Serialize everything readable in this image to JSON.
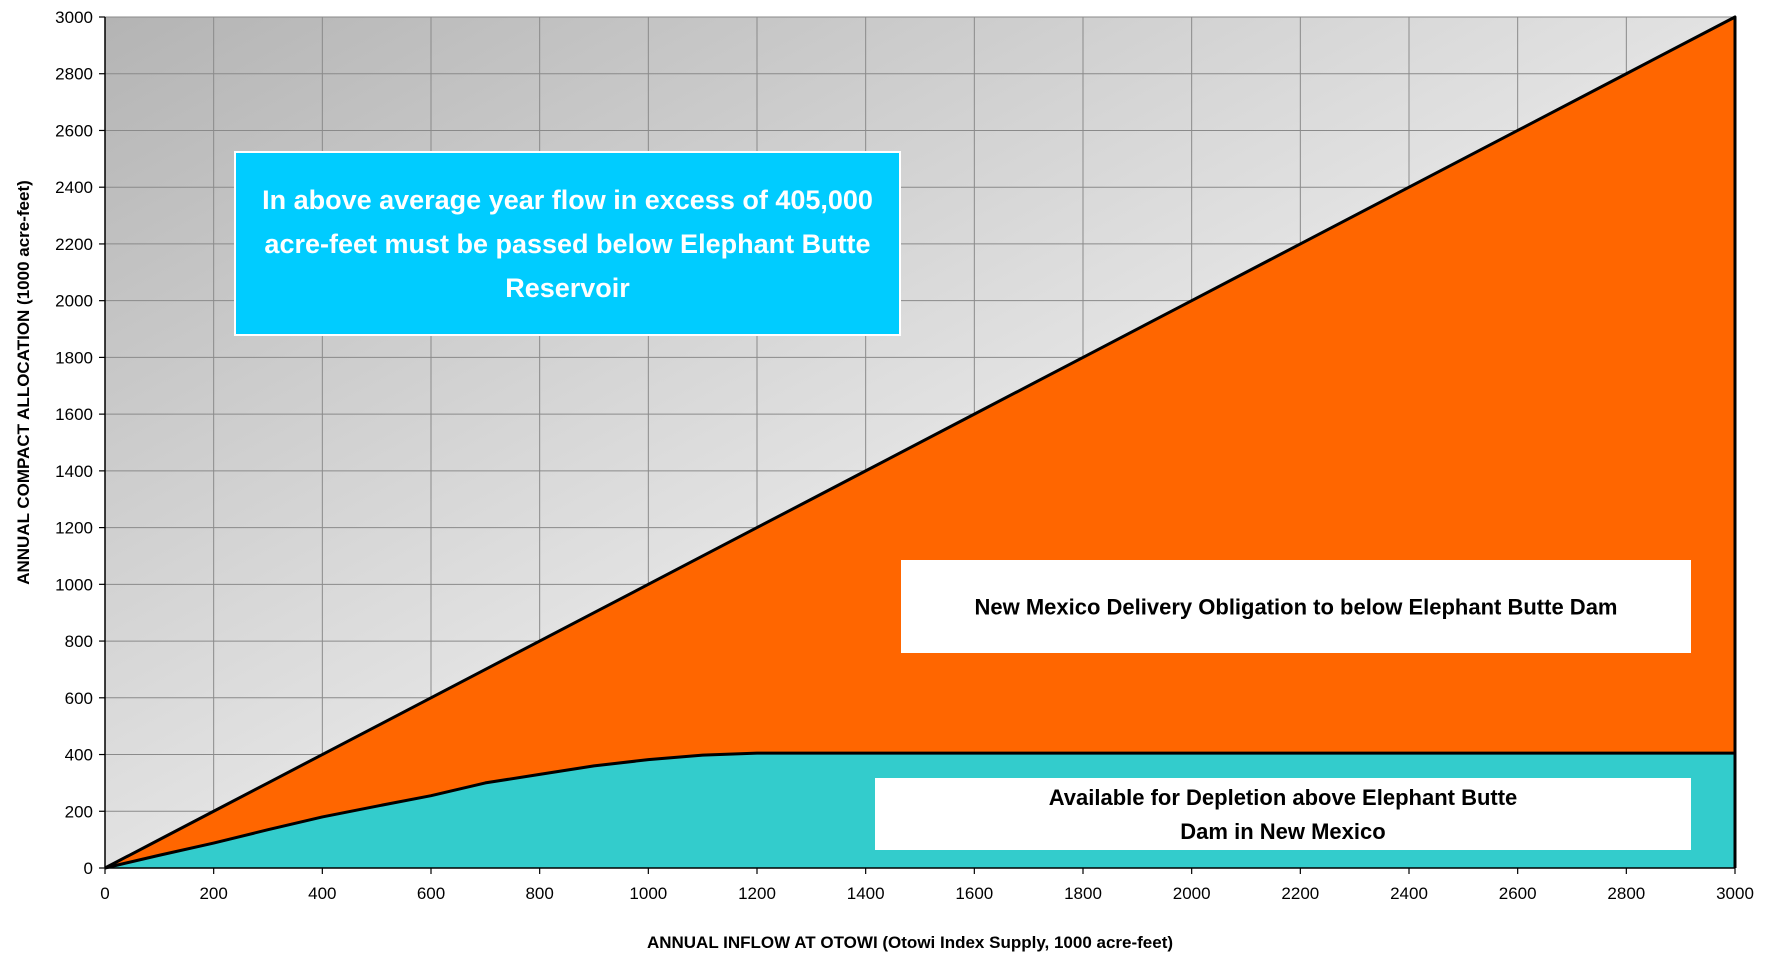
{
  "chart_data": {
    "type": "area",
    "title": "",
    "xlabel": "ANNUAL INFLOW AT OTOWI (Otowi Index Supply, 1000 acre-feet)",
    "ylabel": "ANNUAL COMPACT ALLOCATION (1000 acre-feet)",
    "xlim": [
      0,
      3000
    ],
    "ylim": [
      0,
      3000
    ],
    "xticks": [
      0,
      200,
      400,
      600,
      800,
      1000,
      1200,
      1400,
      1600,
      1800,
      2000,
      2200,
      2400,
      2600,
      2800,
      3000
    ],
    "yticks": [
      0,
      200,
      400,
      600,
      800,
      1000,
      1200,
      1400,
      1600,
      1800,
      2000,
      2200,
      2400,
      2600,
      2800,
      3000
    ],
    "grid": true,
    "x": [
      0,
      100,
      200,
      300,
      400,
      500,
      600,
      700,
      800,
      900,
      1000,
      1100,
      1200,
      1300,
      1400,
      1600,
      1800,
      2000,
      2200,
      2400,
      2600,
      2800,
      3000
    ],
    "series": [
      {
        "name": "Available for Depletion above Elephant Butte Dam in New Mexico",
        "color": "#33CCCC",
        "values": [
          0,
          45,
          88,
          135,
          180,
          218,
          255,
          300,
          330,
          360,
          382,
          398,
          405,
          405,
          405,
          405,
          405,
          405,
          405,
          405,
          405,
          405,
          405
        ]
      },
      {
        "name": "New Mexico Delivery Obligation to below Elephant Butte Dam",
        "color": "#FF6600",
        "values": [
          0,
          100,
          200,
          300,
          400,
          500,
          600,
          700,
          800,
          900,
          1000,
          1100,
          1200,
          1300,
          1400,
          1600,
          1800,
          2000,
          2200,
          2400,
          2600,
          2800,
          3000
        ]
      }
    ],
    "annotations": [
      {
        "text": "In above average year flow in excess of 405,000 acre-feet must be passed below Elephant Butte Reservoir",
        "lines": [
          "In above average year flow in excess of 405,000",
          "acre-feet must be passed below Elephant Butte",
          "Reservoir"
        ],
        "background": "#00CCFF",
        "color": "#FFFFFF"
      },
      {
        "text": "New Mexico Delivery Obligation to below Elephant Butte Dam",
        "lines": [
          "New Mexico Delivery Obligation to below Elephant Butte Dam"
        ],
        "background": "#FFFFFF",
        "color": "#000000"
      },
      {
        "text": "Available for Depletion above Elephant Butte Dam in New Mexico",
        "lines": [
          "Available for Depletion above Elephant Butte",
          "Dam in New Mexico"
        ],
        "background": "#FFFFFF",
        "color": "#000000"
      }
    ]
  }
}
